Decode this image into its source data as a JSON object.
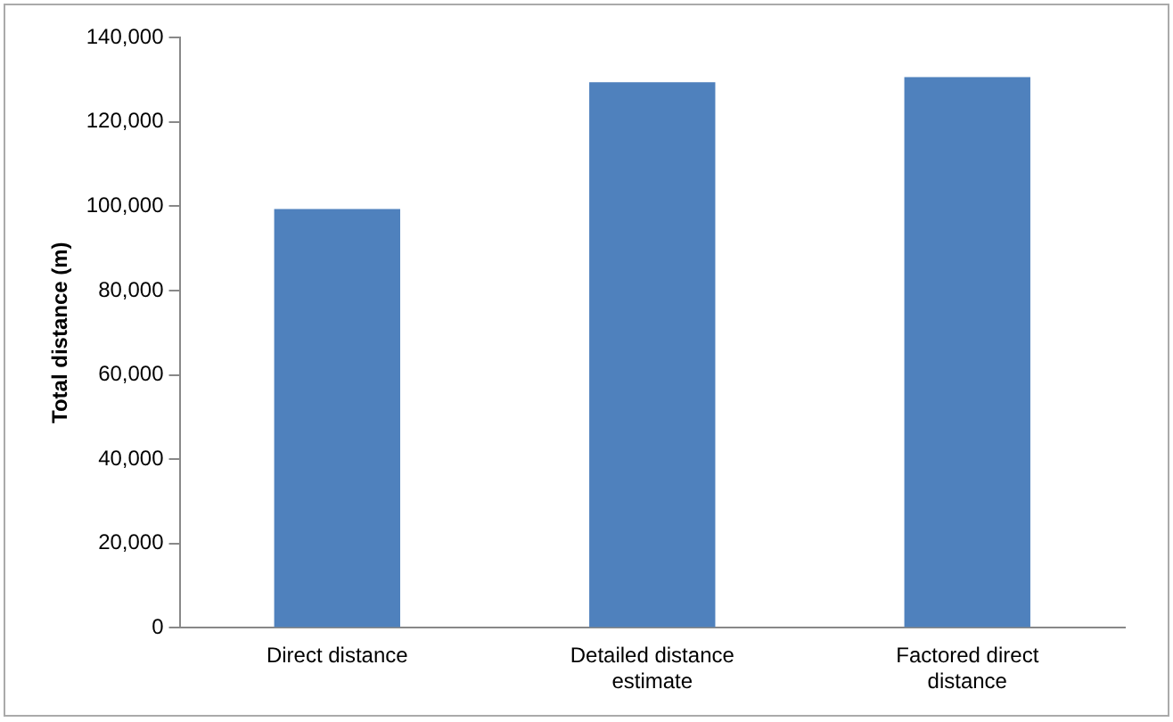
{
  "chart_data": {
    "type": "bar",
    "ylabel": "Total distance (m)",
    "categories": [
      "Direct distance",
      "Detailed distance estimate",
      "Factored direct distance"
    ],
    "values": [
      99300,
      129400,
      130600
    ],
    "color": "#4f81bd",
    "ylim": [
      0,
      140000
    ],
    "yticks": [
      0,
      {
        "value": 20000,
        "label": "20,000"
      },
      {
        "value": 40000,
        "label": "40,000"
      },
      {
        "value": 60000,
        "label": "60,000"
      },
      {
        "value": 80000,
        "label": "80,000"
      },
      {
        "value": 100000,
        "label": "100,000"
      },
      {
        "value": 120000,
        "label": "120,000"
      },
      {
        "value": 140000,
        "label": "140,000"
      }
    ],
    "grid": false,
    "legend": false
  }
}
